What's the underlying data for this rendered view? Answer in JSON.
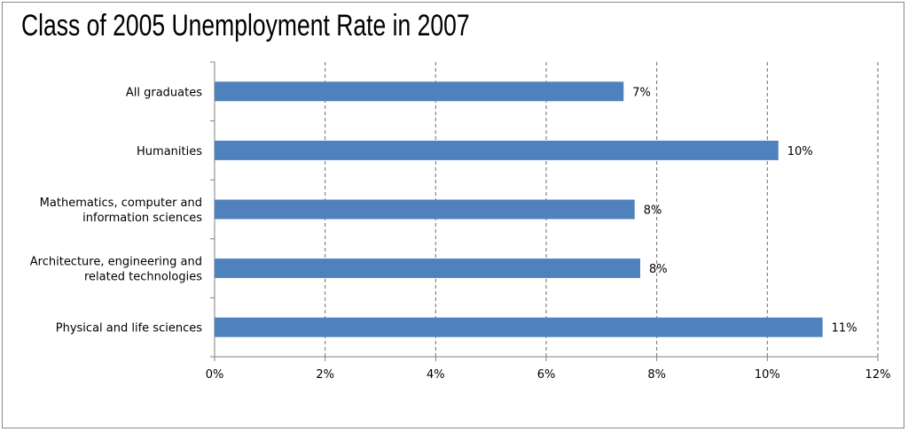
{
  "chart_data": {
    "type": "bar",
    "orientation": "horizontal",
    "title": "Class of 2005 Unemployment Rate in 2007",
    "xlabel": "",
    "ylabel": "",
    "categories": [
      [
        "All graduates"
      ],
      [
        "Humanities"
      ],
      [
        "Mathematics, computer and",
        "information sciences"
      ],
      [
        "Architecture, engineering and",
        "related technologies"
      ],
      [
        "Physical and life sciences"
      ]
    ],
    "values": [
      7.4,
      10.2,
      7.6,
      7.7,
      11.0
    ],
    "value_labels": [
      "7%",
      "10%",
      "8%",
      "8%",
      "11%"
    ],
    "xlim": [
      0,
      12
    ],
    "x_ticks": [
      0,
      2,
      4,
      6,
      8,
      10,
      12
    ],
    "x_tick_labels": [
      "0%",
      "2%",
      "4%",
      "6%",
      "8%",
      "10%",
      "12%"
    ],
    "grid": "vertical-dashed",
    "legend": "none",
    "bar_color": "#4f81bd"
  }
}
